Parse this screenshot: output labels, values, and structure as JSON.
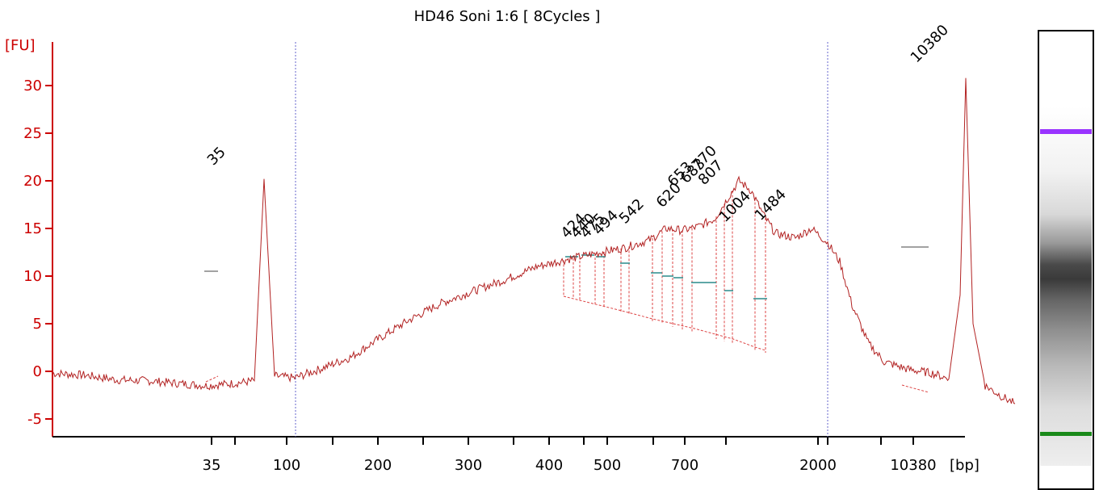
{
  "chart_data": {
    "type": "line",
    "title": "HD46 Soni 1:6  [ 8Cycles ]",
    "ylabel": "[FU]",
    "xlabel": "[bp]",
    "ylim": [
      -7,
      34
    ],
    "y_ticks": [
      -5,
      0,
      5,
      10,
      15,
      20,
      25,
      30
    ],
    "x_tick_labels": [
      "35",
      "100",
      "200",
      "300",
      "400",
      "500",
      "700",
      "2000",
      "10380"
    ],
    "marker_peaks": [
      {
        "label": "35",
        "fu": 20.2,
        "color": "#1a7a1a"
      },
      {
        "label": "10380",
        "fu": 30.8,
        "color": "#9933ff"
      }
    ],
    "peak_labels": [
      "424",
      "440",
      "475",
      "494",
      "542",
      "620",
      "653",
      "683",
      "770",
      "807",
      "1004",
      "1484"
    ],
    "trace": [
      [
        0,
        -0.2
      ],
      [
        40,
        -0.4
      ],
      [
        80,
        -0.9
      ],
      [
        120,
        -1.0
      ],
      [
        160,
        -1.3
      ],
      [
        190,
        -1.5
      ],
      [
        220,
        -1.3
      ],
      [
        250,
        -1.0
      ],
      [
        262,
        20.2
      ],
      [
        275,
        -0.5
      ],
      [
        300,
        -0.7
      ],
      [
        330,
        0.2
      ],
      [
        370,
        1.5
      ],
      [
        400,
        3.2
      ],
      [
        440,
        5.3
      ],
      [
        480,
        7.1
      ],
      [
        520,
        8.4
      ],
      [
        560,
        9.6
      ],
      [
        600,
        11.0
      ],
      [
        640,
        11.8
      ],
      [
        680,
        12.5
      ],
      [
        710,
        13.0
      ],
      [
        740,
        13.8
      ],
      [
        760,
        15.0
      ],
      [
        780,
        14.8
      ],
      [
        800,
        15.2
      ],
      [
        820,
        16.0
      ],
      [
        835,
        18.0
      ],
      [
        850,
        20.0
      ],
      [
        865,
        19.0
      ],
      [
        880,
        16.5
      ],
      [
        895,
        14.5
      ],
      [
        920,
        14.0
      ],
      [
        940,
        15.0
      ],
      [
        960,
        13.5
      ],
      [
        975,
        11.5
      ],
      [
        990,
        7.0
      ],
      [
        1010,
        3.0
      ],
      [
        1030,
        1.0
      ],
      [
        1060,
        0.2
      ],
      [
        1090,
        -0.2
      ],
      [
        1110,
        -0.8
      ],
      [
        1124,
        8.0
      ],
      [
        1131,
        30.8
      ],
      [
        1140,
        5.0
      ],
      [
        1155,
        -1.5
      ],
      [
        1175,
        -2.6
      ],
      [
        1192,
        -3.4
      ]
    ],
    "legend": "none",
    "grid": false
  },
  "gel_lane": {
    "upper_marker_color": "#9933ff",
    "lower_marker_color": "#1a8a1a"
  }
}
